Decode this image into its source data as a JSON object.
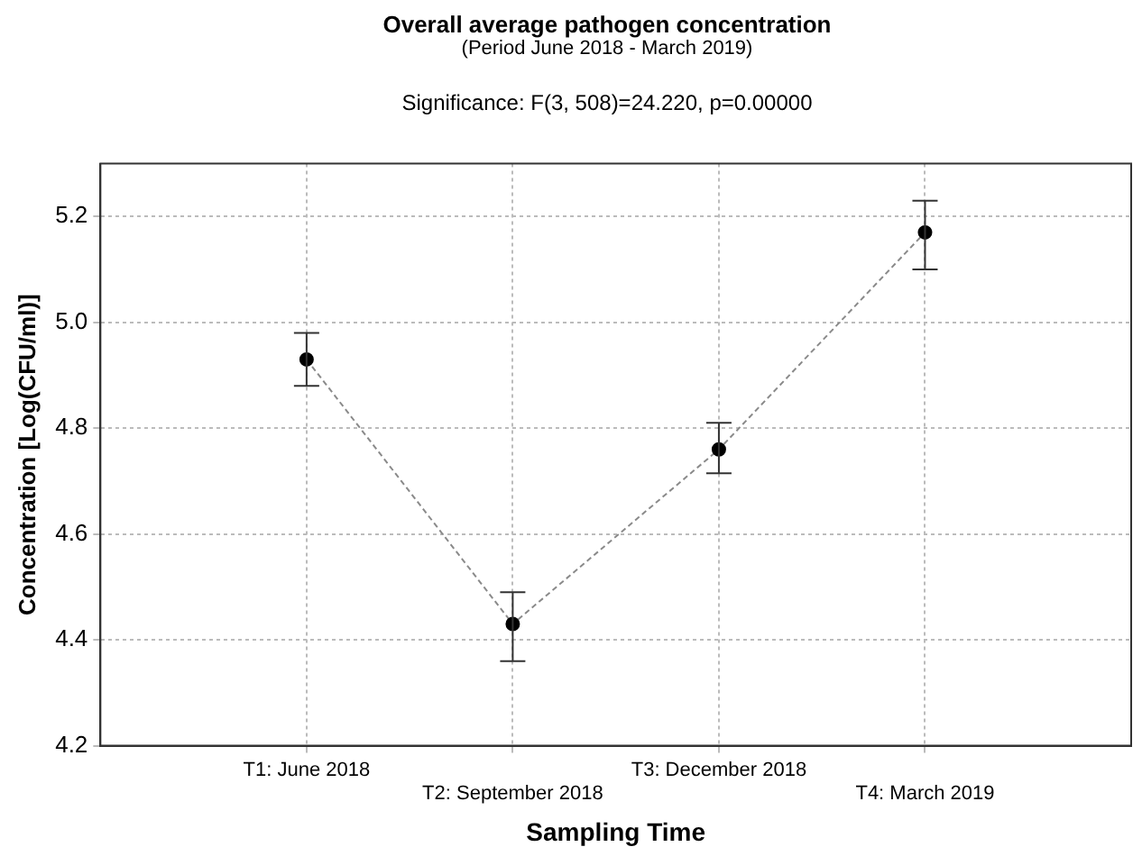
{
  "chart_data": {
    "type": "line",
    "title": "Overall average pathogen concentration",
    "subtitle": "(Period June 2018 - March 2019)",
    "annotations": [
      "Significance: F(3, 508)=24.220, p=0.00000"
    ],
    "xlabel": "Sampling Time",
    "ylabel": "Concentration [Log(CFU/ml)]",
    "categories": [
      "T1: June 2018",
      "T2: September 2018",
      "T3: December 2018",
      "T4: March 2019"
    ],
    "series": [
      {
        "color": "#000000",
        "values": [
          4.93,
          4.43,
          4.76,
          5.17
        ],
        "errors": [
          [
            4.88,
            4.98
          ],
          [
            4.36,
            4.49
          ],
          [
            4.715,
            4.81
          ],
          [
            5.1,
            5.23
          ]
        ]
      }
    ],
    "ylim": [
      4.2,
      5.3
    ],
    "yticks": [
      {
        "value": 4.2,
        "label": "4.2"
      },
      {
        "value": 4.4,
        "label": "4.4"
      },
      {
        "value": 4.6,
        "label": "4.6"
      },
      {
        "value": 4.8,
        "label": "4.8"
      },
      {
        "value": 5.0,
        "label": "5.0"
      },
      {
        "value": 5.2,
        "label": "5.2"
      }
    ],
    "grid": true,
    "marker": "circle",
    "line_style": "dashed"
  }
}
